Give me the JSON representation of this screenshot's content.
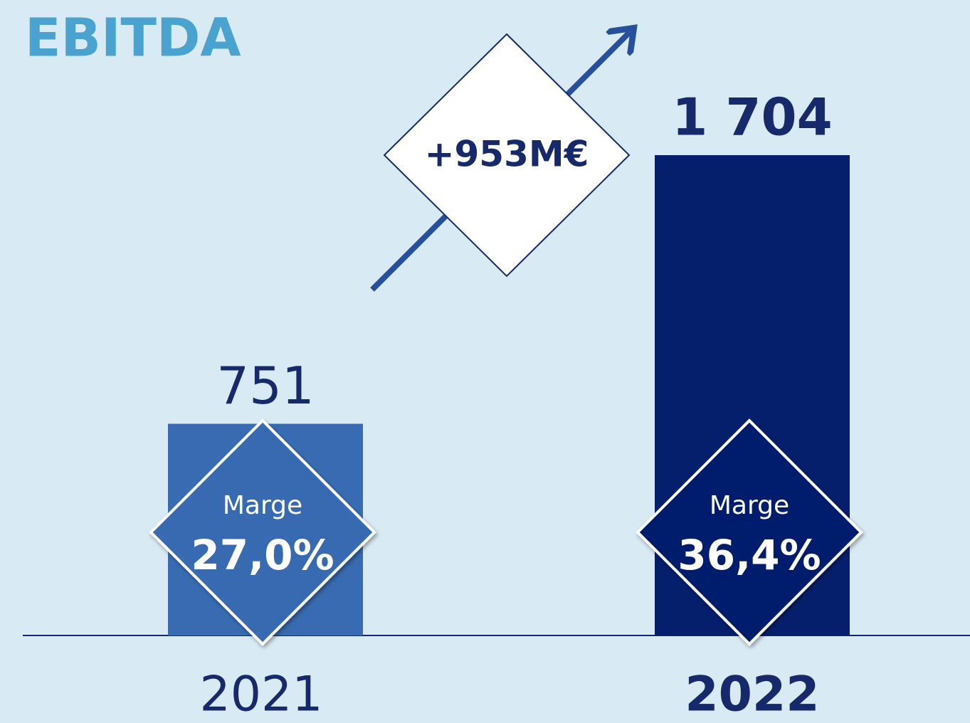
{
  "chart_data": {
    "type": "bar",
    "title": "EBITDA",
    "categories": [
      "2021",
      "2022"
    ],
    "values": [
      751,
      1704
    ],
    "value_labels": [
      "751",
      "1 704"
    ],
    "colors": [
      "#386bb2",
      "#061f6d"
    ],
    "annotation": "+953M€",
    "margin_title": "Marge",
    "margins": [
      27.0,
      36.4
    ],
    "margin_labels": [
      "27,0%",
      "36,4%"
    ]
  }
}
